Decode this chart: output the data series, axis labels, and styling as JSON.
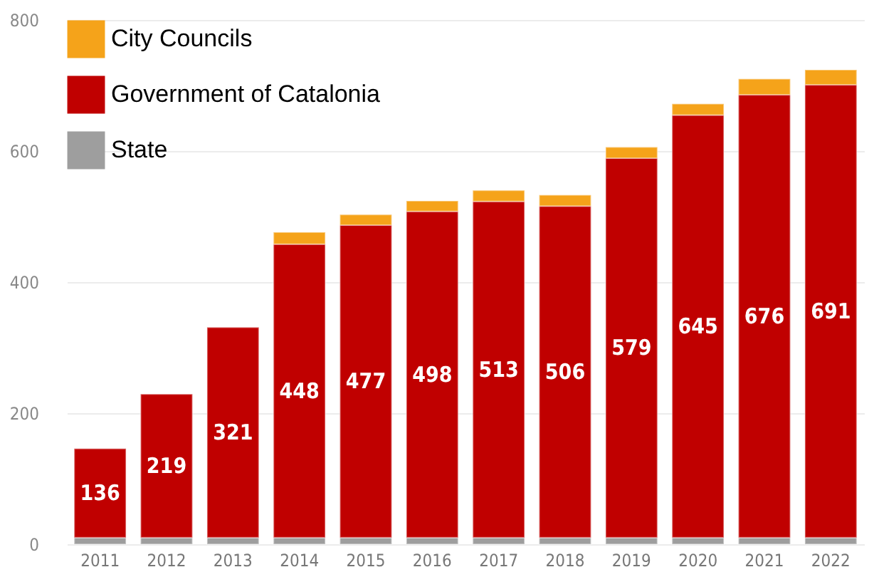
{
  "chart_data": {
    "type": "bar",
    "stacked": true,
    "categories": [
      "2011",
      "2012",
      "2013",
      "2014",
      "2015",
      "2016",
      "2017",
      "2018",
      "2019",
      "2020",
      "2021",
      "2022"
    ],
    "series": [
      {
        "name": "State",
        "color": "#9e9e9e",
        "values": [
          10,
          10,
          10,
          10,
          10,
          10,
          10,
          10,
          10,
          10,
          10,
          10
        ]
      },
      {
        "name": "Government of Catalonia",
        "color": "#c00000",
        "values": [
          136,
          219,
          321,
          448,
          477,
          498,
          513,
          506,
          579,
          645,
          676,
          691
        ],
        "value_labels": [
          "136",
          "219",
          "321",
          "448",
          "477",
          "498",
          "513",
          "506",
          "579",
          "645",
          "676",
          "691"
        ]
      },
      {
        "name": "City Councils",
        "color": "#f5a31a",
        "values": [
          null,
          null,
          null,
          18,
          16,
          16,
          17,
          17,
          17,
          17,
          24,
          23
        ]
      }
    ],
    "ylim": [
      0,
      800
    ],
    "yticks": [
      0,
      200,
      400,
      600,
      800
    ],
    "grid": "y",
    "legend": "top left"
  }
}
